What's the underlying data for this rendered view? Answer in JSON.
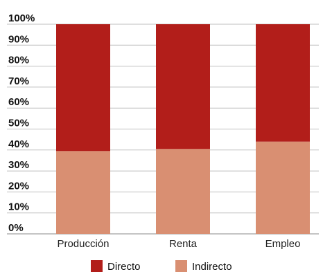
{
  "chart_data": {
    "type": "bar",
    "stacked": true,
    "percent": true,
    "categories": [
      "Producción",
      "Renta",
      "Empleo"
    ],
    "series": [
      {
        "name": "Indirecto",
        "values": [
          39.5,
          40.5,
          44
        ],
        "color": "#D98F72"
      },
      {
        "name": "Directo",
        "values": [
          60.5,
          59.5,
          56
        ],
        "color": "#B21E1A"
      }
    ],
    "y_ticks": [
      "0%",
      "10%",
      "20%",
      "30%",
      "40%",
      "50%",
      "60%",
      "70%",
      "80%",
      "90%",
      "100%"
    ],
    "ylim": [
      0,
      100
    ],
    "grid": true,
    "legend": {
      "position": "bottom",
      "items": [
        {
          "label": "Directo",
          "color": "#B21E1A"
        },
        {
          "label": "Indirecto",
          "color": "#D98F72"
        }
      ]
    },
    "title": "",
    "xlabel": "",
    "ylabel": ""
  }
}
